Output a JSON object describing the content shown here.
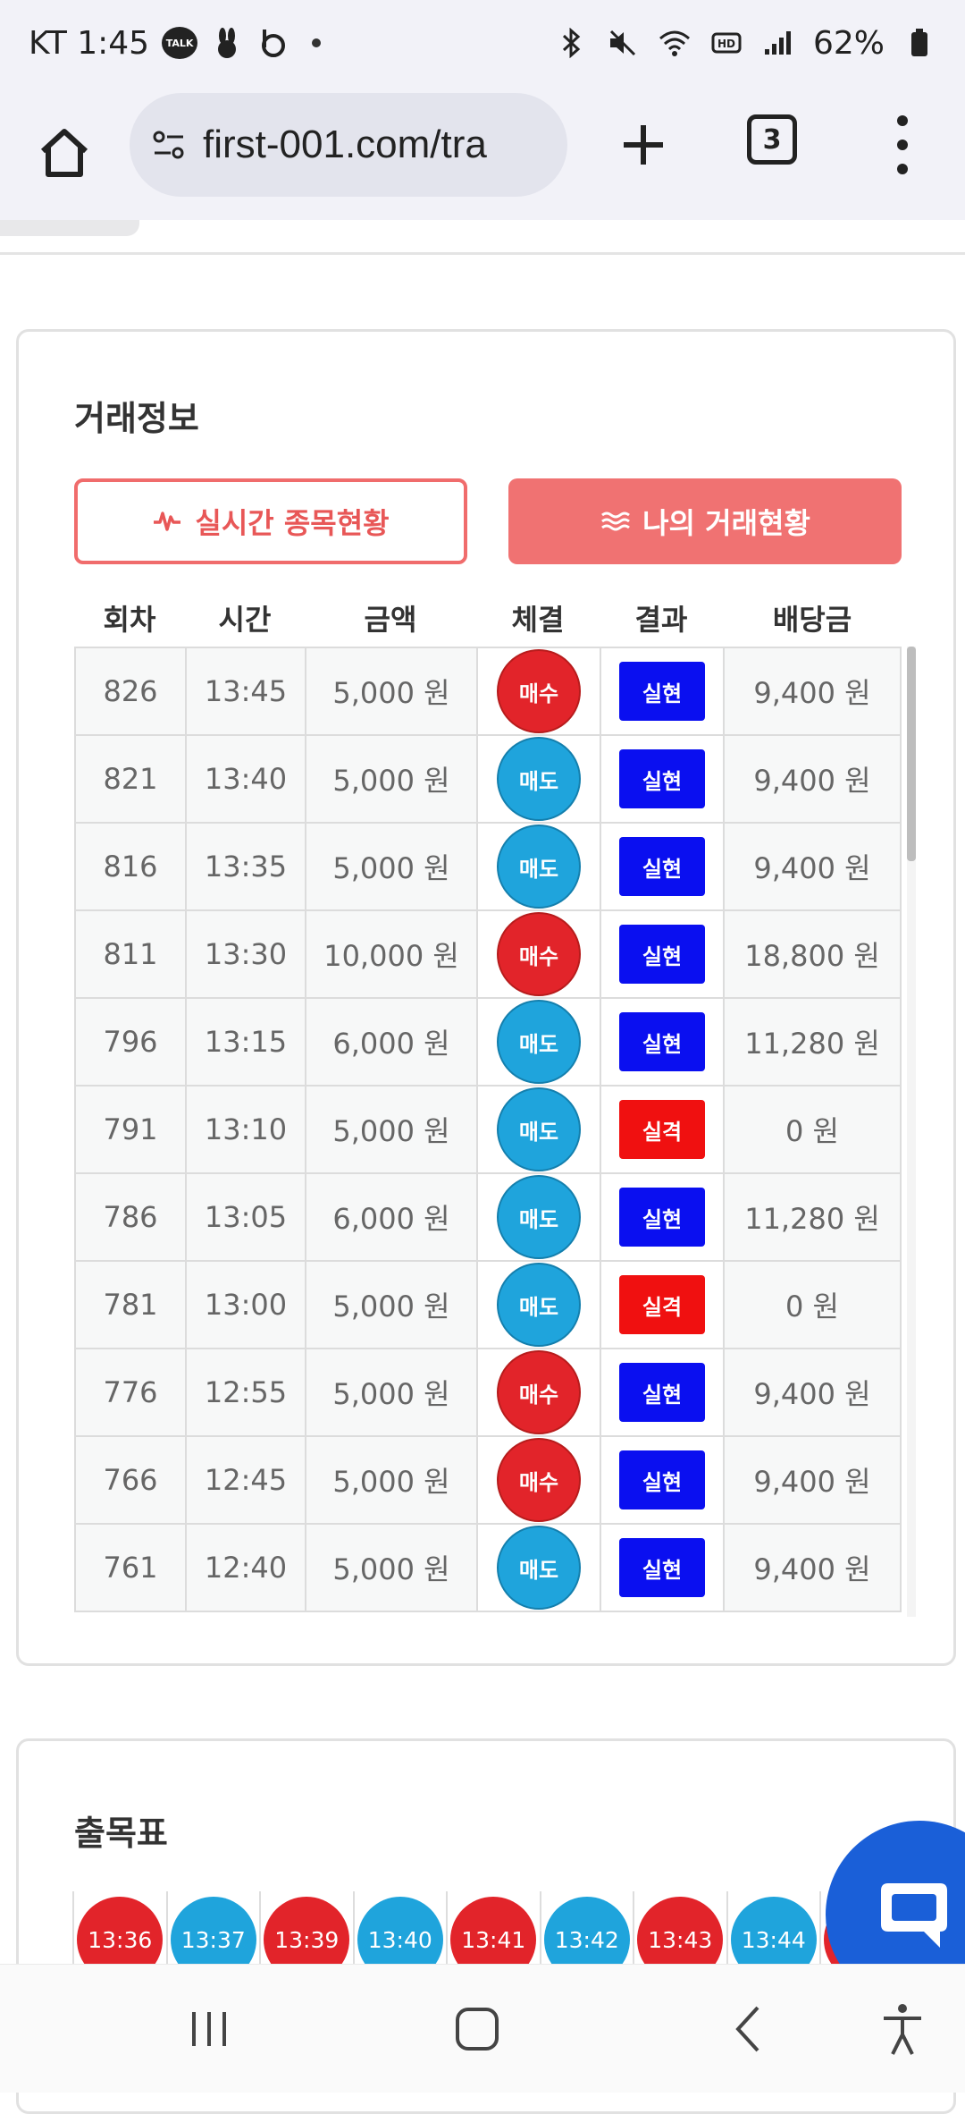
{
  "status_bar": {
    "carrier_time": "KT 1:45",
    "talk_label": "TALK",
    "battery": "62%",
    "icons": [
      "talk-icon",
      "rabbit-icon",
      "b-app-icon",
      "bluetooth-icon",
      "mute-icon",
      "wifi-icon",
      "hd-icon",
      "signal-icon",
      "battery-icon"
    ]
  },
  "browser": {
    "url": "first-001.com/tra",
    "tab_count": "3"
  },
  "trade_info": {
    "title": "거래정보",
    "tab_realtime": "실시간 종목현황",
    "tab_mytrade": "나의 거래현황",
    "columns": [
      "회차",
      "시간",
      "금액",
      "체결",
      "결과",
      "배당금"
    ],
    "rows": [
      {
        "round": "826",
        "time": "13:45",
        "amount": "5,000 원",
        "side": "매수",
        "side_type": "buy",
        "result": "실현",
        "result_type": "win",
        "payout": "9,400 원"
      },
      {
        "round": "821",
        "time": "13:40",
        "amount": "5,000 원",
        "side": "매도",
        "side_type": "sell",
        "result": "실현",
        "result_type": "win",
        "payout": "9,400 원"
      },
      {
        "round": "816",
        "time": "13:35",
        "amount": "5,000 원",
        "side": "매도",
        "side_type": "sell",
        "result": "실현",
        "result_type": "win",
        "payout": "9,400 원"
      },
      {
        "round": "811",
        "time": "13:30",
        "amount": "10,000 원",
        "side": "매수",
        "side_type": "buy",
        "result": "실현",
        "result_type": "win",
        "payout": "18,800 원"
      },
      {
        "round": "796",
        "time": "13:15",
        "amount": "6,000 원",
        "side": "매도",
        "side_type": "sell",
        "result": "실현",
        "result_type": "win",
        "payout": "11,280 원"
      },
      {
        "round": "791",
        "time": "13:10",
        "amount": "5,000 원",
        "side": "매도",
        "side_type": "sell",
        "result": "실격",
        "result_type": "lose",
        "payout": "0 원"
      },
      {
        "round": "786",
        "time": "13:05",
        "amount": "6,000 원",
        "side": "매도",
        "side_type": "sell",
        "result": "실현",
        "result_type": "win",
        "payout": "11,280 원"
      },
      {
        "round": "781",
        "time": "13:00",
        "amount": "5,000 원",
        "side": "매도",
        "side_type": "sell",
        "result": "실격",
        "result_type": "lose",
        "payout": "0 원"
      },
      {
        "round": "776",
        "time": "12:55",
        "amount": "5,000 원",
        "side": "매수",
        "side_type": "buy",
        "result": "실현",
        "result_type": "win",
        "payout": "9,400 원"
      },
      {
        "round": "766",
        "time": "12:45",
        "amount": "5,000 원",
        "side": "매수",
        "side_type": "buy",
        "result": "실현",
        "result_type": "win",
        "payout": "9,400 원"
      },
      {
        "round": "761",
        "time": "12:40",
        "amount": "5,000 원",
        "side": "매도",
        "side_type": "sell",
        "result": "실현",
        "result_type": "win",
        "payout": "9,400 원"
      }
    ]
  },
  "schedule": {
    "title": "출목표",
    "items": [
      {
        "time": "13:36",
        "color": "red"
      },
      {
        "time": "13:37",
        "color": "blue"
      },
      {
        "time": "13:39",
        "color": "red"
      },
      {
        "time": "13:40",
        "color": "blue"
      },
      {
        "time": "13:41",
        "color": "red"
      },
      {
        "time": "13:42",
        "color": "blue"
      },
      {
        "time": "13:43",
        "color": "red"
      },
      {
        "time": "13:44",
        "color": "blue"
      },
      {
        "time": "",
        "color": "red"
      }
    ]
  },
  "colors": {
    "buy": "#e2242a",
    "sell": "#1fa4dc",
    "win": "#0a0ff0",
    "lose": "#f01010",
    "accent": "#f07272",
    "chat": "#1a5fd8"
  }
}
